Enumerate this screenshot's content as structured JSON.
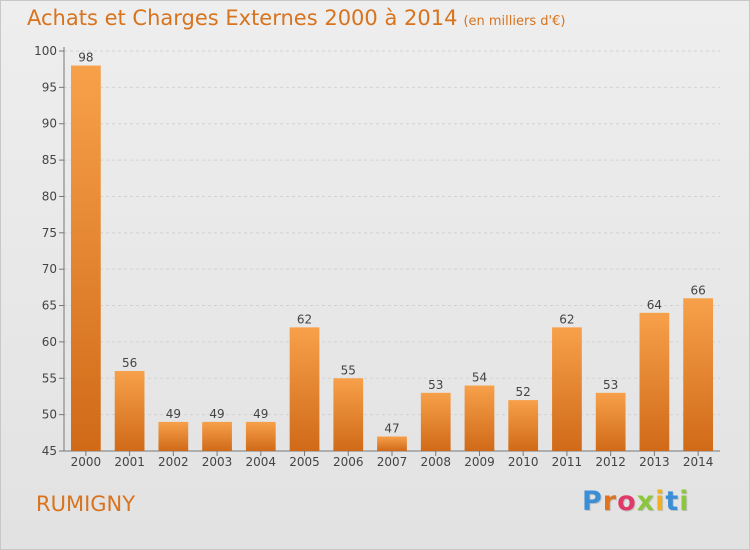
{
  "title": "Achats et Charges Externes 2000 à 2014",
  "subtitle": "(en milliers d'€)",
  "commune": "RUMIGNY",
  "logo": {
    "text": "Proxiti",
    "colors": [
      "#3a8fd6",
      "#e0731e",
      "#e03a6a",
      "#8cc63e",
      "#f2b01e",
      "#3a8fd6",
      "#8cc63e"
    ]
  },
  "colors": {
    "bar_light": "#f7a04a",
    "bar_dark": "#d06a18",
    "accent_text": "#d8731e"
  },
  "chart_data": {
    "type": "bar",
    "categories": [
      "2000",
      "2001",
      "2002",
      "2003",
      "2004",
      "2005",
      "2006",
      "2007",
      "2008",
      "2009",
      "2010",
      "2011",
      "2012",
      "2013",
      "2014"
    ],
    "values": [
      98,
      56,
      49,
      49,
      49,
      62,
      55,
      47,
      53,
      54,
      52,
      62,
      53,
      64,
      66
    ],
    "ylim": [
      45,
      100
    ],
    "yticks": [
      45,
      50,
      55,
      60,
      65,
      70,
      75,
      80,
      85,
      90,
      95,
      100
    ],
    "grid": true,
    "xlabel": "",
    "ylabel": ""
  }
}
